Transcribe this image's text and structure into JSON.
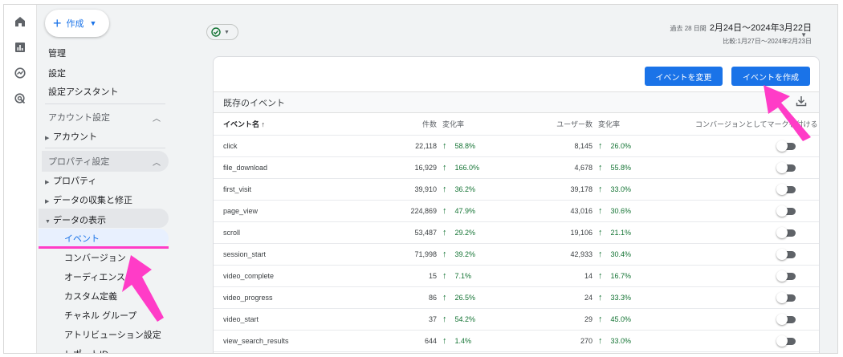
{
  "rail": {
    "icons": [
      "home-icon",
      "reports-icon",
      "explore-icon",
      "advertising-icon"
    ]
  },
  "sidebar": {
    "create_label": "作成",
    "top_items": [
      "管理",
      "設定",
      "設定アシスタント"
    ],
    "account_section": {
      "label": "アカウント設定",
      "items": [
        "アカウント"
      ]
    },
    "property_section": {
      "label": "プロパティ設定",
      "items": [
        "プロパティ",
        "データの収集と修正",
        "データの表示"
      ]
    },
    "display_items": [
      "イベント",
      "コンバージョン",
      "オーディエンス",
      "カスタム定義",
      "チャネル グループ",
      "アトリビューション設定",
      "レポートID"
    ]
  },
  "header": {
    "compare_icon": "check-circle-icon",
    "date_prefix": "過去 28 日間",
    "date_range": "2月24日～2024年3月22日",
    "compare_range": "比較:1月27日～2024年2月23日"
  },
  "card": {
    "modify_label": "イベントを変更",
    "create_label": "イベントを作成",
    "title": "既存のイベント",
    "columns": {
      "name": "イベント名",
      "count": "件数",
      "count_change": "変化率",
      "users": "ユーザー数",
      "users_change": "変化率",
      "conversion": "コンバージョンとしてマークを付ける"
    },
    "rows": [
      {
        "name": "click",
        "count": "22,118",
        "count_change": "58.8%",
        "users": "8,145",
        "users_change": "26.0%"
      },
      {
        "name": "file_download",
        "count": "16,929",
        "count_change": "166.0%",
        "users": "4,678",
        "users_change": "55.8%"
      },
      {
        "name": "first_visit",
        "count": "39,910",
        "count_change": "36.2%",
        "users": "39,178",
        "users_change": "33.0%"
      },
      {
        "name": "page_view",
        "count": "224,869",
        "count_change": "47.9%",
        "users": "43,016",
        "users_change": "30.6%"
      },
      {
        "name": "scroll",
        "count": "53,487",
        "count_change": "29.2%",
        "users": "19,106",
        "users_change": "21.1%"
      },
      {
        "name": "session_start",
        "count": "71,998",
        "count_change": "39.2%",
        "users": "42,933",
        "users_change": "30.4%"
      },
      {
        "name": "video_complete",
        "count": "15",
        "count_change": "7.1%",
        "users": "14",
        "users_change": "16.7%"
      },
      {
        "name": "video_progress",
        "count": "86",
        "count_change": "26.5%",
        "users": "24",
        "users_change": "33.3%"
      },
      {
        "name": "video_start",
        "count": "37",
        "count_change": "54.2%",
        "users": "29",
        "users_change": "45.0%"
      },
      {
        "name": "view_search_results",
        "count": "644",
        "count_change": "1.4%",
        "users": "270",
        "users_change": "33.0%"
      }
    ],
    "toggle_states": [
      false,
      false,
      false,
      false,
      false,
      false,
      false,
      false,
      false,
      false
    ]
  },
  "colors": {
    "accent": "#1a73e8",
    "positive": "#137333",
    "highlight": "#ff3cc7"
  },
  "up_arrow": "↑",
  "sort_arrow": "↑"
}
